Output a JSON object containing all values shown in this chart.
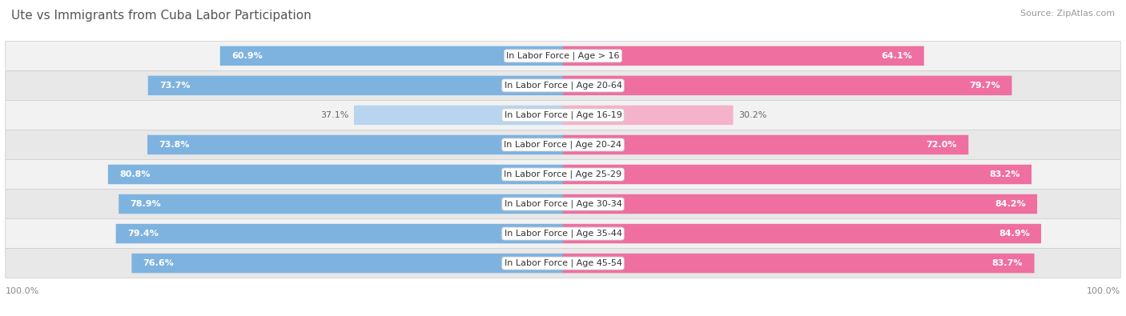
{
  "title": "Ute vs Immigrants from Cuba Labor Participation",
  "source": "Source: ZipAtlas.com",
  "categories": [
    "In Labor Force | Age > 16",
    "In Labor Force | Age 20-64",
    "In Labor Force | Age 16-19",
    "In Labor Force | Age 20-24",
    "In Labor Force | Age 25-29",
    "In Labor Force | Age 30-34",
    "In Labor Force | Age 35-44",
    "In Labor Force | Age 45-54"
  ],
  "ute_values": [
    60.9,
    73.7,
    37.1,
    73.8,
    80.8,
    78.9,
    79.4,
    76.6
  ],
  "cuba_values": [
    64.1,
    79.7,
    30.2,
    72.0,
    83.2,
    84.2,
    84.9,
    83.7
  ],
  "ute_color": "#7EB3E0",
  "ute_color_light": "#B8D4EF",
  "cuba_color": "#EE6FA0",
  "cuba_color_light": "#F4B3CB",
  "row_bg_color_odd": "#F2F2F2",
  "row_bg_color_even": "#E8E8E8",
  "max_value": 100.0,
  "title_fontsize": 11,
  "label_fontsize": 8,
  "value_fontsize": 8,
  "legend_fontsize": 9,
  "axis_label_fontsize": 8,
  "light_rows": [
    2
  ]
}
